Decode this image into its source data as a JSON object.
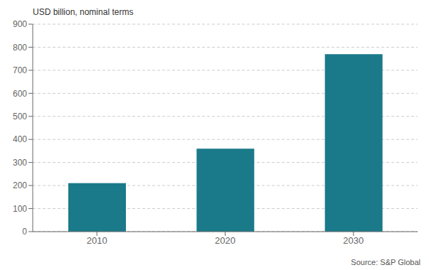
{
  "chart_data": {
    "type": "bar",
    "ylabel": "USD billion, nominal terms",
    "categories": [
      "2010",
      "2020",
      "2030"
    ],
    "values": [
      210,
      360,
      770
    ],
    "color": "#1a7a8a",
    "ylim": [
      0,
      900
    ],
    "yticks": [
      0,
      100,
      200,
      300,
      400,
      500,
      600,
      700,
      800,
      900
    ],
    "grid": true,
    "annotations": [
      "Source: S&P Global"
    ]
  }
}
